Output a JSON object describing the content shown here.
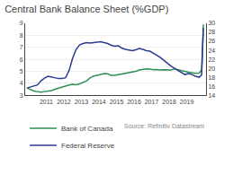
{
  "chart_data": {
    "type": "line",
    "title": "Central Bank Balance Sheet (%GDP)",
    "x": [
      2009.9,
      2010.1,
      2010.3,
      2010.5,
      2010.7,
      2010.9,
      2011.1,
      2011.3,
      2011.5,
      2011.7,
      2011.9,
      2012.1,
      2012.3,
      2012.5,
      2012.7,
      2012.9,
      2013.1,
      2013.3,
      2013.5,
      2013.7,
      2013.9,
      2014.1,
      2014.3,
      2014.5,
      2014.7,
      2014.9,
      2015.1,
      2015.3,
      2015.5,
      2015.7,
      2015.9,
      2016.1,
      2016.3,
      2016.5,
      2016.7,
      2016.9,
      2017.1,
      2017.3,
      2017.5,
      2017.7,
      2017.9,
      2018.1,
      2018.3,
      2018.5,
      2018.7,
      2018.9,
      2019.1,
      2019.3,
      2019.5,
      2019.7,
      2019.85,
      2019.95
    ],
    "series": [
      {
        "name": "Bank of Canada",
        "color": "#2a9050",
        "values": [
          3.6,
          3.45,
          3.35,
          3.3,
          3.25,
          3.3,
          3.32,
          3.38,
          3.5,
          3.6,
          3.7,
          3.75,
          3.85,
          3.9,
          3.88,
          3.95,
          4.05,
          4.2,
          4.45,
          4.6,
          4.65,
          4.7,
          4.8,
          4.78,
          4.65,
          4.65,
          4.7,
          4.8,
          4.85,
          4.88,
          4.9,
          5.0,
          5.1,
          5.15,
          5.2,
          5.18,
          5.12,
          5.15,
          5.1,
          5.12,
          5.1,
          5.1,
          5.2,
          5.12,
          5.05,
          5.0,
          4.92,
          4.87,
          4.82,
          4.85,
          5.1,
          8.9
        ]
      },
      {
        "name": "Federal Reserve",
        "color": "#2b3a8f",
        "axis": "y2",
        "values": [
          15.6,
          15.8,
          16.0,
          16.3,
          17.2,
          17.8,
          18.2,
          18.0,
          17.8,
          17.7,
          17.7,
          17.9,
          19.5,
          22.2,
          24.2,
          25.2,
          25.5,
          25.7,
          25.6,
          25.7,
          25.8,
          25.9,
          25.7,
          25.5,
          25.1,
          24.9,
          25.0,
          24.5,
          24.2,
          24.0,
          23.9,
          24.1,
          24.4,
          24.2,
          23.9,
          23.8,
          23.4,
          22.9,
          22.4,
          21.7,
          21.0,
          20.5,
          20.0,
          19.5,
          19.0,
          18.6,
          18.8,
          18.6,
          18.2,
          18.0,
          18.5,
          29.0
        ]
      }
    ],
    "xlim": [
      2009.8,
      2020.1
    ],
    "xticks": [
      2011,
      2012,
      2013,
      2014,
      2015,
      2016,
      2017,
      2018,
      2019
    ],
    "ylim": [
      3,
      9
    ],
    "yticks": [
      3,
      4,
      5,
      6,
      7,
      8,
      9
    ],
    "y2lim": [
      14,
      30
    ],
    "y2ticks": [
      14,
      16,
      18,
      20,
      22,
      24,
      26,
      28,
      30
    ],
    "grid": "y",
    "legend": "lower left",
    "annotations": [
      "Source: Refinitiv Datastream"
    ]
  }
}
